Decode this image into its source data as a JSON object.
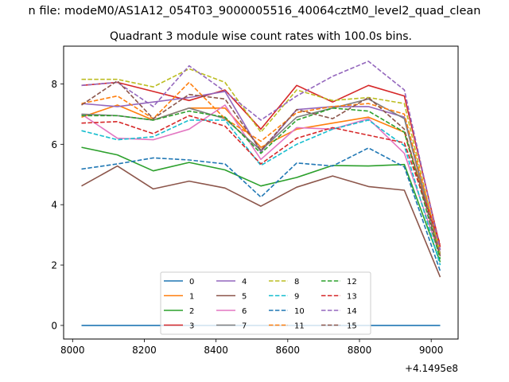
{
  "figure": {
    "suptitle": "n file: modeM0/AS1A12_054T03_9000005516_40064cztM0_level2_quad_clean",
    "title": "Quadrant 3 module wise count rates with 100.0s bins.",
    "offset_label": "+4.1495e8"
  },
  "chart_data": {
    "type": "line",
    "title": "Quadrant 3 module wise count rates with 100.0s bins.",
    "xlabel": "",
    "ylabel": "",
    "x_offset": 414950000,
    "x": [
      8025,
      8125,
      8225,
      8325,
      8425,
      8525,
      8625,
      8725,
      8825,
      8925,
      9025
    ],
    "xlim": [
      7975,
      9075
    ],
    "ylim": [
      -0.45,
      9.25
    ],
    "xticks": [
      8000,
      8200,
      8400,
      8600,
      8800,
      9000
    ],
    "yticks": [
      0,
      2,
      4,
      6,
      8
    ],
    "grid": false,
    "legend": {
      "placement": "lower center",
      "columns": 4
    },
    "series": [
      {
        "name": "0",
        "color": "#1f77b4",
        "dash": "solid",
        "values": [
          0,
          0,
          0,
          0,
          0,
          0,
          0,
          0,
          0,
          0,
          0
        ]
      },
      {
        "name": "1",
        "color": "#ff7f0e",
        "dash": "solid",
        "values": [
          6.9,
          7.3,
          6.8,
          7.2,
          7.2,
          5.9,
          6.5,
          6.7,
          6.9,
          6.4,
          2.6
        ]
      },
      {
        "name": "2",
        "color": "#2ca02c",
        "dash": "solid",
        "values": [
          5.9,
          5.65,
          5.12,
          5.4,
          5.15,
          4.62,
          4.9,
          5.3,
          5.28,
          5.33,
          2.1
        ]
      },
      {
        "name": "3",
        "color": "#d62728",
        "dash": "solid",
        "values": [
          7.95,
          8.05,
          7.75,
          7.45,
          7.8,
          6.5,
          7.95,
          7.4,
          7.95,
          7.6,
          2.6
        ]
      },
      {
        "name": "4",
        "color": "#9467bd",
        "dash": "solid",
        "values": [
          7.35,
          7.25,
          7.4,
          7.55,
          7.75,
          5.75,
          7.15,
          7.25,
          7.25,
          6.9,
          2.4
        ]
      },
      {
        "name": "5",
        "color": "#8c564b",
        "dash": "solid",
        "values": [
          4.62,
          5.28,
          4.52,
          4.78,
          4.55,
          3.95,
          4.58,
          4.95,
          4.6,
          4.48,
          1.6
        ]
      },
      {
        "name": "6",
        "color": "#e377c2",
        "dash": "solid",
        "values": [
          7.0,
          6.2,
          6.15,
          6.5,
          7.3,
          5.5,
          6.55,
          6.5,
          6.85,
          5.7,
          2.3
        ]
      },
      {
        "name": "7",
        "color": "#7f7f7f",
        "dash": "solid",
        "values": [
          7.0,
          6.95,
          6.8,
          7.2,
          6.85,
          5.8,
          6.9,
          7.2,
          7.5,
          6.85,
          2.3
        ]
      },
      {
        "name": "8",
        "color": "#bcbd22",
        "dash": "dashed",
        "values": [
          8.15,
          8.15,
          7.9,
          8.5,
          8.05,
          6.4,
          7.8,
          7.45,
          7.55,
          7.35,
          2.35
        ]
      },
      {
        "name": "9",
        "color": "#17becf",
        "dash": "dashed",
        "values": [
          6.45,
          6.15,
          6.25,
          6.8,
          6.8,
          5.3,
          6.0,
          6.5,
          6.8,
          5.95,
          2.0
        ]
      },
      {
        "name": "10",
        "color": "#1f77b4",
        "dash": "dashed",
        "values": [
          5.18,
          5.35,
          5.55,
          5.48,
          5.35,
          4.25,
          5.38,
          5.28,
          5.88,
          5.25,
          1.8
        ]
      },
      {
        "name": "11",
        "color": "#ff7f0e",
        "dash": "dashed",
        "values": [
          7.35,
          7.6,
          6.85,
          8.05,
          6.85,
          6.1,
          7.05,
          7.25,
          7.35,
          7.0,
          2.5
        ]
      },
      {
        "name": "12",
        "color": "#2ca02c",
        "dash": "dashed",
        "values": [
          6.95,
          6.95,
          6.8,
          7.1,
          6.9,
          5.7,
          6.8,
          7.2,
          7.1,
          6.4,
          2.2
        ]
      },
      {
        "name": "13",
        "color": "#d62728",
        "dash": "dashed",
        "values": [
          6.7,
          6.75,
          6.35,
          6.95,
          6.6,
          5.35,
          6.2,
          6.55,
          6.3,
          6.05,
          2.7
        ]
      },
      {
        "name": "14",
        "color": "#9467bd",
        "dash": "dashed",
        "values": [
          7.95,
          8.05,
          7.25,
          8.6,
          7.75,
          6.8,
          7.6,
          8.25,
          8.75,
          7.8,
          2.5
        ]
      },
      {
        "name": "15",
        "color": "#8c564b",
        "dash": "dashed",
        "values": [
          7.3,
          8.1,
          6.85,
          7.65,
          7.5,
          5.8,
          7.15,
          6.85,
          7.55,
          6.5,
          2.3
        ]
      }
    ]
  }
}
